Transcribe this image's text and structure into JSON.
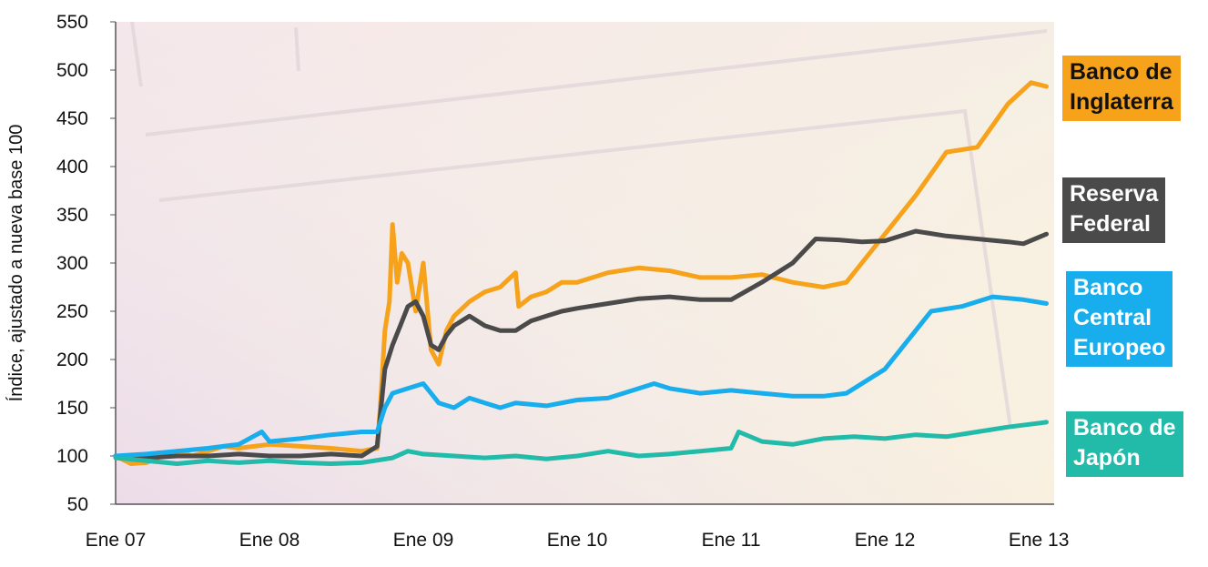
{
  "chart_data": {
    "type": "line",
    "ylabel": "Índice, ajustado a nueva base 100",
    "xlabel": "",
    "title": "",
    "ylim": [
      50,
      550
    ],
    "yticks": [
      50,
      100,
      150,
      200,
      250,
      300,
      350,
      400,
      450,
      500,
      550
    ],
    "xlim": [
      2007.0,
      2013.1
    ],
    "xtick_labels": [
      "Ene 07",
      "Ene 08",
      "Ene 09",
      "Ene 10",
      "Ene 11",
      "Ene 12",
      "Ene 13"
    ],
    "xtick_positions": [
      2007,
      2008,
      2009,
      2010,
      2011,
      2012,
      2013
    ],
    "legend_placement": "right",
    "series": [
      {
        "name": "Banco de\nInglaterra",
        "color": "#f7a21b",
        "x": [
          2007.0,
          2007.1,
          2007.2,
          2007.3,
          2007.4,
          2007.5,
          2007.6,
          2007.7,
          2007.8,
          2007.9,
          2008.0,
          2008.2,
          2008.4,
          2008.6,
          2008.7,
          2008.72,
          2008.75,
          2008.78,
          2008.8,
          2008.83,
          2008.86,
          2008.9,
          2008.95,
          2009.0,
          2009.05,
          2009.1,
          2009.15,
          2009.2,
          2009.3,
          2009.4,
          2009.5,
          2009.6,
          2009.62,
          2009.7,
          2009.8,
          2009.9,
          2010.0,
          2010.2,
          2010.4,
          2010.6,
          2010.8,
          2011.0,
          2011.2,
          2011.4,
          2011.6,
          2011.75,
          2011.85,
          2012.0,
          2012.2,
          2012.4,
          2012.6,
          2012.8,
          2012.95,
          2013.05
        ],
        "y": [
          100,
          92,
          93,
          100,
          105,
          100,
          105,
          110,
          108,
          110,
          112,
          110,
          108,
          105,
          108,
          150,
          230,
          260,
          340,
          280,
          310,
          300,
          250,
          300,
          210,
          195,
          230,
          245,
          260,
          270,
          275,
          290,
          255,
          265,
          270,
          280,
          280,
          290,
          295,
          292,
          285,
          285,
          288,
          280,
          275,
          280,
          300,
          330,
          370,
          415,
          420,
          465,
          487,
          483
        ]
      },
      {
        "name": "Reserva\nFederal",
        "color": "#4a4a4a",
        "x": [
          2007.0,
          2007.2,
          2007.4,
          2007.6,
          2007.8,
          2008.0,
          2008.2,
          2008.4,
          2008.6,
          2008.7,
          2008.75,
          2008.8,
          2008.85,
          2008.9,
          2008.95,
          2009.0,
          2009.05,
          2009.1,
          2009.15,
          2009.2,
          2009.3,
          2009.4,
          2009.5,
          2009.6,
          2009.7,
          2009.8,
          2009.9,
          2010.0,
          2010.2,
          2010.4,
          2010.6,
          2010.8,
          2011.0,
          2011.2,
          2011.4,
          2011.55,
          2011.7,
          2011.85,
          2012.0,
          2012.2,
          2012.4,
          2012.6,
          2012.8,
          2012.9,
          2013.05
        ],
        "y": [
          100,
          98,
          100,
          100,
          102,
          100,
          100,
          102,
          100,
          110,
          190,
          215,
          235,
          255,
          260,
          245,
          215,
          210,
          225,
          235,
          245,
          235,
          230,
          230,
          240,
          245,
          250,
          253,
          258,
          263,
          265,
          262,
          262,
          280,
          300,
          325,
          324,
          322,
          323,
          333,
          328,
          325,
          322,
          320,
          330
        ]
      },
      {
        "name": "Banco\nCentral\nEuropeo",
        "color": "#18adec",
        "x": [
          2007.0,
          2007.2,
          2007.4,
          2007.6,
          2007.8,
          2007.95,
          2008.0,
          2008.2,
          2008.4,
          2008.6,
          2008.7,
          2008.75,
          2008.8,
          2008.9,
          2009.0,
          2009.05,
          2009.1,
          2009.2,
          2009.3,
          2009.4,
          2009.5,
          2009.6,
          2009.8,
          2010.0,
          2010.2,
          2010.3,
          2010.5,
          2010.6,
          2010.8,
          2011.0,
          2011.2,
          2011.4,
          2011.6,
          2011.75,
          2011.85,
          2012.0,
          2012.1,
          2012.2,
          2012.3,
          2012.5,
          2012.7,
          2012.9,
          2013.05
        ],
        "y": [
          100,
          102,
          105,
          108,
          112,
          125,
          115,
          118,
          122,
          125,
          125,
          150,
          165,
          170,
          175,
          165,
          155,
          150,
          160,
          155,
          150,
          155,
          152,
          158,
          160,
          165,
          175,
          170,
          165,
          168,
          165,
          162,
          162,
          165,
          175,
          190,
          210,
          230,
          250,
          255,
          265,
          262,
          258
        ]
      },
      {
        "name": "Banco de\nJapón",
        "color": "#22bba9",
        "x": [
          2007.0,
          2007.2,
          2007.4,
          2007.6,
          2007.8,
          2008.0,
          2008.2,
          2008.4,
          2008.6,
          2008.8,
          2008.9,
          2009.0,
          2009.2,
          2009.4,
          2009.6,
          2009.8,
          2010.0,
          2010.2,
          2010.4,
          2010.6,
          2010.8,
          2011.0,
          2011.05,
          2011.2,
          2011.4,
          2011.6,
          2011.8,
          2012.0,
          2012.2,
          2012.4,
          2012.6,
          2012.8,
          2013.05
        ],
        "y": [
          98,
          95,
          92,
          95,
          93,
          95,
          93,
          92,
          93,
          98,
          105,
          102,
          100,
          98,
          100,
          97,
          100,
          105,
          100,
          102,
          105,
          108,
          125,
          115,
          112,
          118,
          120,
          118,
          122,
          120,
          125,
          130,
          135
        ]
      }
    ]
  }
}
